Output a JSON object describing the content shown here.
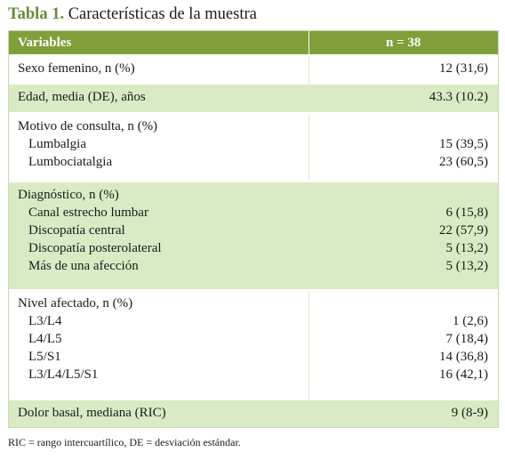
{
  "title": {
    "label": "Tabla 1.",
    "text": "Características de la muestra"
  },
  "header": {
    "variables": "Variables",
    "n": "n = 38"
  },
  "rows": [
    {
      "label": "Sexo femenino, n (%)",
      "value": "12 (31,6)"
    },
    {
      "label": "Edad, media (DE), años",
      "value": "43.3 (10.2)"
    },
    {
      "label": "Motivo de consulta, n (%)",
      "items": [
        {
          "label": "Lumbalgia",
          "value": "15 (39,5)"
        },
        {
          "label": "Lumbociatalgia",
          "value": "23 (60,5)"
        }
      ]
    },
    {
      "label": "Diagnóstico, n (%)",
      "items": [
        {
          "label": "Canal estrecho lumbar",
          "value": "6 (15,8)"
        },
        {
          "label": "Discopatía central",
          "value": "22 (57,9)"
        },
        {
          "label": "Discopatía posterolateral",
          "value": "5 (13,2)"
        },
        {
          "label": "Más de una afección",
          "value": "5 (13,2)"
        }
      ]
    },
    {
      "label": "Nivel afectado, n (%)",
      "items": [
        {
          "label": "L3/L4",
          "value": "1 (2,6)"
        },
        {
          "label": "L4/L5",
          "value": "7 (18,4)"
        },
        {
          "label": "L5/S1",
          "value": "14 (36,8)"
        },
        {
          "label": "L3/L4/L5/S1",
          "value": "16 (42,1)"
        }
      ]
    },
    {
      "label": "Dolor basal, mediana (RIC)",
      "value": "9 (8-9)"
    }
  ],
  "footnote": "RIC = rango intercuartílico, DE = desviación estándar."
}
